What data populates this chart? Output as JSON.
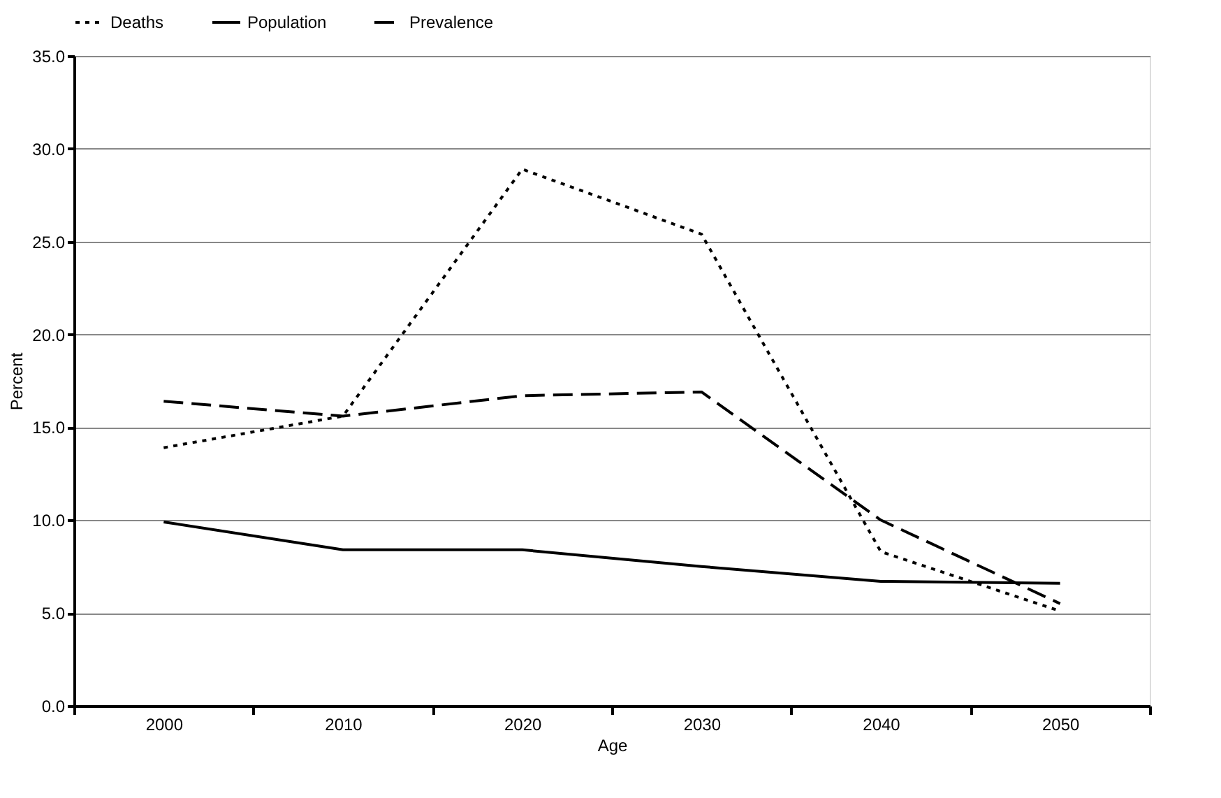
{
  "chart_data": {
    "type": "line",
    "xlabel": "Age",
    "ylabel": "Percent",
    "categories": [
      "2000",
      "2010",
      "2020",
      "2030",
      "2040",
      "2050"
    ],
    "series": [
      {
        "name": "Deaths",
        "color": "#000000",
        "line_style": "dotted",
        "values": [
          13.9,
          15.6,
          28.9,
          25.4,
          8.3,
          5.1
        ]
      },
      {
        "name": "Population",
        "color": "#000000",
        "line_style": "solid",
        "values": [
          9.9,
          8.4,
          8.4,
          7.5,
          6.7,
          6.6
        ]
      },
      {
        "name": "Prevalence",
        "color": "#000000",
        "line_style": "dashed",
        "values": [
          16.4,
          15.6,
          16.7,
          16.9,
          10.0,
          5.5
        ]
      }
    ],
    "ylim": [
      0,
      35
    ],
    "yticks": [
      {
        "value": 0,
        "label": "0.0"
      },
      {
        "value": 5,
        "label": "5.0"
      },
      {
        "value": 10,
        "label": "10.0"
      },
      {
        "value": 15,
        "label": "15.0"
      },
      {
        "value": 20,
        "label": "20.0"
      },
      {
        "value": 25,
        "label": "25.0"
      },
      {
        "value": 30,
        "label": "30.0"
      },
      {
        "value": 35,
        "label": "35.0"
      }
    ],
    "grid": "y",
    "legend": "top",
    "marker": "none"
  }
}
